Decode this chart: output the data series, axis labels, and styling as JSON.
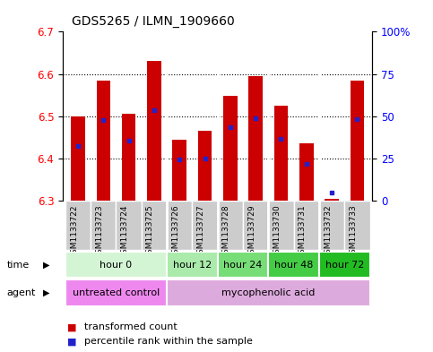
{
  "title": "GDS5265 / ILMN_1909660",
  "samples": [
    "GSM1133722",
    "GSM1133723",
    "GSM1133724",
    "GSM1133725",
    "GSM1133726",
    "GSM1133727",
    "GSM1133728",
    "GSM1133729",
    "GSM1133730",
    "GSM1133731",
    "GSM1133732",
    "GSM1133733"
  ],
  "bar_bottom": 6.3,
  "bar_tops": [
    6.5,
    6.585,
    6.505,
    6.63,
    6.445,
    6.465,
    6.548,
    6.595,
    6.525,
    6.435,
    6.305,
    6.585
  ],
  "percentile_values": [
    6.43,
    6.49,
    6.443,
    6.515,
    6.397,
    6.4,
    6.473,
    6.495,
    6.447,
    6.388,
    6.32,
    6.492
  ],
  "ylim_left": [
    6.3,
    6.7
  ],
  "ylim_right": [
    0,
    100
  ],
  "yticks_left": [
    6.3,
    6.4,
    6.5,
    6.6,
    6.7
  ],
  "yticks_right": [
    0,
    25,
    50,
    75,
    100
  ],
  "ytick_labels_right": [
    "0",
    "25",
    "50",
    "75",
    "100%"
  ],
  "bar_color": "#cc0000",
  "percentile_color": "#2222cc",
  "background_color": "#ffffff",
  "plot_bg": "#ffffff",
  "grid_dotted_color": "#000000",
  "time_groups": [
    {
      "label": "hour 0",
      "start": 0,
      "end": 4,
      "color": "#d4f5d4"
    },
    {
      "label": "hour 12",
      "start": 4,
      "end": 6,
      "color": "#aaeaaa"
    },
    {
      "label": "hour 24",
      "start": 6,
      "end": 8,
      "color": "#77dd77"
    },
    {
      "label": "hour 48",
      "start": 8,
      "end": 10,
      "color": "#44cc44"
    },
    {
      "label": "hour 72",
      "start": 10,
      "end": 12,
      "color": "#22bb22"
    }
  ],
  "agent_groups": [
    {
      "label": "untreated control",
      "start": 0,
      "end": 4,
      "color": "#ee88ee"
    },
    {
      "label": "mycophenolic acid",
      "start": 4,
      "end": 12,
      "color": "#ddaadd"
    }
  ],
  "legend_items": [
    {
      "label": "transformed count",
      "color": "#cc0000"
    },
    {
      "label": "percentile rank within the sample",
      "color": "#2222cc"
    }
  ],
  "bar_width": 0.55,
  "label_fontsize": 6.5,
  "title_fontsize": 10,
  "tick_fontsize": 8.5,
  "row_fontsize": 8,
  "legend_fontsize": 8
}
